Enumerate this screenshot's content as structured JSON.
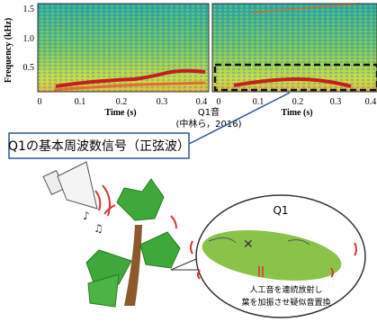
{
  "spectrogram_left": {
    "y_axis_label": "Frequency (kHz)",
    "yticks": [
      "1.5",
      "1.0",
      "0.5"
    ],
    "xticks": [
      "0",
      "0.1",
      "0.2",
      "0.3",
      "0.4"
    ],
    "x_axis_label": "Time (s)"
  },
  "spectrogram_right": {
    "xticks": [
      "0",
      "0.1",
      "0.2",
      "0.3",
      "0.4"
    ],
    "x_axis_label": "Time (s)"
  },
  "caption": {
    "title": "Q1音",
    "source": "(中林ら，2016)"
  },
  "callout": "Q1の基本周波数信号（正弦波）",
  "inset": {
    "title": "Q1",
    "lines": [
      "人工音を連続放射し",
      "葉を加振させ疑似音置換"
    ]
  }
}
